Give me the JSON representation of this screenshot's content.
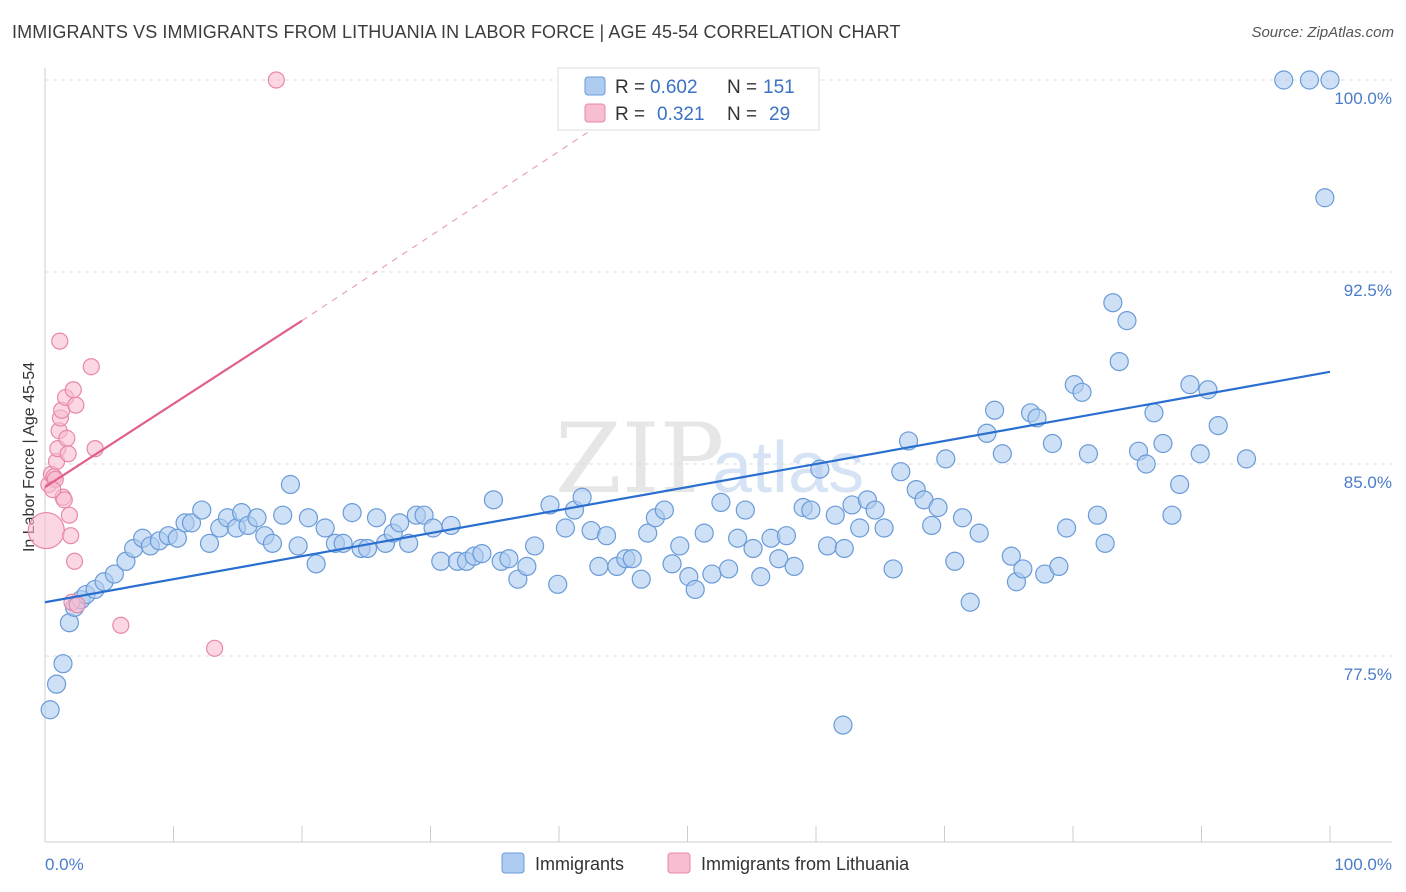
{
  "header": {
    "title": "IMMIGRANTS VS IMMIGRANTS FROM LITHUANIA IN LABOR FORCE | AGE 45-54 CORRELATION CHART",
    "source": "Source: ZipAtlas.com"
  },
  "watermark": {
    "zip": "ZIP",
    "atlas": "atlas"
  },
  "colors": {
    "blue_fill": "#aecbf0",
    "blue_stroke": "#6a9bd8",
    "blue_line": "#2a6fd0",
    "pink_fill": "#f7bdd0",
    "pink_stroke": "#e888a8",
    "pink_line": "#e0608a",
    "grid": "#dddddd",
    "axis_text": "#4a7cc9"
  },
  "legend": {
    "rows": [
      {
        "r_label": "R =",
        "r_value": "0.602",
        "n_label": "N =",
        "n_value": "151"
      },
      {
        "r_label": "R =",
        "r_value": "0.321",
        "n_label": "N =",
        "n_value": "29"
      }
    ]
  },
  "bottom_legend": [
    "Immigrants",
    "Immigrants from Lithuania"
  ],
  "chart_data": {
    "type": "scatter",
    "title": "IMMIGRANTS VS IMMIGRANTS FROM LITHUANIA IN LABOR FORCE | AGE 45-54 CORRELATION CHART",
    "xlabel": "",
    "ylabel": "In Labor Force | Age 45-54",
    "xlim": [
      0,
      100
    ],
    "ylim": [
      70.5,
      100.5
    ],
    "x_tick_labels": [
      "0.0%",
      "100.0%"
    ],
    "y_ticks": [
      77.5,
      85.0,
      92.5,
      100.0
    ],
    "y_tick_labels": [
      "77.5%",
      "85.0%",
      "92.5%",
      "100.0%"
    ],
    "grid": true,
    "legend_position": "top-center",
    "series": [
      {
        "name": "Immigrants",
        "r": 0.602,
        "n": 151,
        "trend": {
          "x": [
            0,
            100
          ],
          "y": [
            79.6,
            88.6
          ]
        },
        "points": [
          [
            0.4,
            75.4
          ],
          [
            0.9,
            76.4
          ],
          [
            1.4,
            77.2
          ],
          [
            1.9,
            78.8
          ],
          [
            2.3,
            79.4
          ],
          [
            2.8,
            79.7
          ],
          [
            3.2,
            79.9
          ],
          [
            3.9,
            80.1
          ],
          [
            4.6,
            80.4
          ],
          [
            5.4,
            80.7
          ],
          [
            6.3,
            81.2
          ],
          [
            6.9,
            81.7
          ],
          [
            7.6,
            82.1
          ],
          [
            8.2,
            81.8
          ],
          [
            8.9,
            82.0
          ],
          [
            9.6,
            82.2
          ],
          [
            10.3,
            82.1
          ],
          [
            10.9,
            82.7
          ],
          [
            11.4,
            82.7
          ],
          [
            12.2,
            83.2
          ],
          [
            12.8,
            81.9
          ],
          [
            13.6,
            82.5
          ],
          [
            14.2,
            82.9
          ],
          [
            14.9,
            82.5
          ],
          [
            15.3,
            83.1
          ],
          [
            15.8,
            82.6
          ],
          [
            16.5,
            82.9
          ],
          [
            17.1,
            82.2
          ],
          [
            17.7,
            81.9
          ],
          [
            18.5,
            83.0
          ],
          [
            19.1,
            84.2
          ],
          [
            19.7,
            81.8
          ],
          [
            20.5,
            82.9
          ],
          [
            21.1,
            81.1
          ],
          [
            21.8,
            82.5
          ],
          [
            22.6,
            81.9
          ],
          [
            23.2,
            81.9
          ],
          [
            23.9,
            83.1
          ],
          [
            24.6,
            81.7
          ],
          [
            25.1,
            81.7
          ],
          [
            25.8,
            82.9
          ],
          [
            26.5,
            81.9
          ],
          [
            27.1,
            82.3
          ],
          [
            27.6,
            82.7
          ],
          [
            28.3,
            81.9
          ],
          [
            28.9,
            83.0
          ],
          [
            29.5,
            83.0
          ],
          [
            30.2,
            82.5
          ],
          [
            30.8,
            81.2
          ],
          [
            31.6,
            82.6
          ],
          [
            32.1,
            81.2
          ],
          [
            32.8,
            81.2
          ],
          [
            33.4,
            81.4
          ],
          [
            34.0,
            81.5
          ],
          [
            34.9,
            83.6
          ],
          [
            35.5,
            81.2
          ],
          [
            36.1,
            81.3
          ],
          [
            36.8,
            80.5
          ],
          [
            37.5,
            81.0
          ],
          [
            38.1,
            81.8
          ],
          [
            39.3,
            83.4
          ],
          [
            39.9,
            80.3
          ],
          [
            40.5,
            82.5
          ],
          [
            41.2,
            83.2
          ],
          [
            41.8,
            83.7
          ],
          [
            42.5,
            82.4
          ],
          [
            43.1,
            81.0
          ],
          [
            43.7,
            82.2
          ],
          [
            44.5,
            81.0
          ],
          [
            45.2,
            81.3
          ],
          [
            45.7,
            81.3
          ],
          [
            46.4,
            80.5
          ],
          [
            46.9,
            82.3
          ],
          [
            47.5,
            82.9
          ],
          [
            48.2,
            83.2
          ],
          [
            48.8,
            81.1
          ],
          [
            49.4,
            81.8
          ],
          [
            50.1,
            80.6
          ],
          [
            50.6,
            80.1
          ],
          [
            51.3,
            82.3
          ],
          [
            51.9,
            80.7
          ],
          [
            52.6,
            83.5
          ],
          [
            53.2,
            80.9
          ],
          [
            53.9,
            82.1
          ],
          [
            54.5,
            83.2
          ],
          [
            55.1,
            81.7
          ],
          [
            55.7,
            80.6
          ],
          [
            56.5,
            82.1
          ],
          [
            57.1,
            81.3
          ],
          [
            57.7,
            82.2
          ],
          [
            58.3,
            81.0
          ],
          [
            59.0,
            83.3
          ],
          [
            59.6,
            83.2
          ],
          [
            60.3,
            84.8
          ],
          [
            60.9,
            81.8
          ],
          [
            61.5,
            83.0
          ],
          [
            62.2,
            81.7
          ],
          [
            62.8,
            83.4
          ],
          [
            63.4,
            82.5
          ],
          [
            64.0,
            83.6
          ],
          [
            64.6,
            83.2
          ],
          [
            65.3,
            82.5
          ],
          [
            66.0,
            80.9
          ],
          [
            66.6,
            84.7
          ],
          [
            67.2,
            85.9
          ],
          [
            67.8,
            84.0
          ],
          [
            68.4,
            83.6
          ],
          [
            69.0,
            82.6
          ],
          [
            69.5,
            83.3
          ],
          [
            70.1,
            85.2
          ],
          [
            70.8,
            81.2
          ],
          [
            71.4,
            82.9
          ],
          [
            72.0,
            79.6
          ],
          [
            72.7,
            82.3
          ],
          [
            73.3,
            86.2
          ],
          [
            73.9,
            87.1
          ],
          [
            74.5,
            85.4
          ],
          [
            75.2,
            81.4
          ],
          [
            75.6,
            80.4
          ],
          [
            76.1,
            80.9
          ],
          [
            76.7,
            87.0
          ],
          [
            77.2,
            86.8
          ],
          [
            77.8,
            80.7
          ],
          [
            78.4,
            85.8
          ],
          [
            78.9,
            81.0
          ],
          [
            79.5,
            82.5
          ],
          [
            80.1,
            88.1
          ],
          [
            80.7,
            87.8
          ],
          [
            81.2,
            85.4
          ],
          [
            81.9,
            83.0
          ],
          [
            82.5,
            81.9
          ],
          [
            83.1,
            91.3
          ],
          [
            83.6,
            89.0
          ],
          [
            84.2,
            90.6
          ],
          [
            85.1,
            85.5
          ],
          [
            85.7,
            85.0
          ],
          [
            86.3,
            87.0
          ],
          [
            87.0,
            85.8
          ],
          [
            87.7,
            83.0
          ],
          [
            88.3,
            84.2
          ],
          [
            89.1,
            88.1
          ],
          [
            89.9,
            85.4
          ],
          [
            90.5,
            87.9
          ],
          [
            91.3,
            86.5
          ],
          [
            93.5,
            85.2
          ],
          [
            96.4,
            100.0
          ],
          [
            98.4,
            100.0
          ],
          [
            100.0,
            100.0
          ],
          [
            99.6,
            95.4
          ],
          [
            62.1,
            74.8
          ]
        ]
      },
      {
        "name": "Immigrants from Lithuania",
        "r": 0.321,
        "n": 29,
        "trend": {
          "x": [
            0,
            20
          ],
          "y": [
            84.1,
            90.6
          ]
        },
        "trend_extension": {
          "x": [
            20,
            46
          ],
          "y": [
            90.6,
            99.2
          ]
        },
        "points": [
          [
            0.1,
            82.4
          ],
          [
            0.3,
            84.2
          ],
          [
            0.5,
            84.6
          ],
          [
            0.7,
            84.5
          ],
          [
            0.8,
            84.4
          ],
          [
            0.9,
            85.1
          ],
          [
            1.0,
            85.6
          ],
          [
            1.1,
            86.3
          ],
          [
            1.2,
            86.8
          ],
          [
            1.3,
            87.1
          ],
          [
            1.4,
            83.7
          ],
          [
            1.5,
            83.6
          ],
          [
            1.6,
            87.6
          ],
          [
            1.7,
            86.0
          ],
          [
            1.8,
            85.4
          ],
          [
            1.9,
            83.0
          ],
          [
            2.0,
            82.2
          ],
          [
            2.1,
            79.6
          ],
          [
            2.2,
            87.9
          ],
          [
            2.3,
            81.2
          ],
          [
            2.4,
            87.3
          ],
          [
            2.5,
            79.5
          ],
          [
            1.15,
            89.8
          ],
          [
            3.6,
            88.8
          ],
          [
            3.9,
            85.6
          ],
          [
            5.9,
            78.7
          ],
          [
            13.2,
            77.8
          ],
          [
            18.0,
            100.0
          ],
          [
            0.6,
            84.0
          ]
        ]
      }
    ]
  }
}
